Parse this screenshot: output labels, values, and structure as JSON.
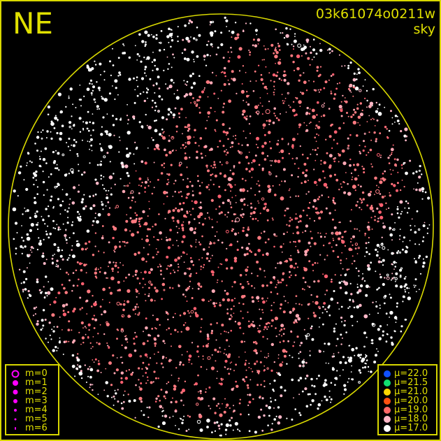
{
  "header": {
    "direction": "NE",
    "field_id": "03k61074o0211w",
    "view": "sky"
  },
  "colors": {
    "frame": "#d8d800",
    "horizon": "#d8d800",
    "magnitude_symbol": "#ff00ff"
  },
  "magnitude_legend": [
    {
      "label": "m=0",
      "style": "ring"
    },
    {
      "label": "m=1"
    },
    {
      "label": "m=2"
    },
    {
      "label": "m=3"
    },
    {
      "label": "m=4"
    },
    {
      "label": "m=5"
    },
    {
      "label": "m=6"
    }
  ],
  "brightness_legend": [
    {
      "label": "μ=22.0",
      "color": "#1050ff"
    },
    {
      "label": "μ=21.5",
      "color": "#10e070"
    },
    {
      "label": "μ=21.0",
      "color": "#ffd800"
    },
    {
      "label": "μ=20.0",
      "color": "#ff5010"
    },
    {
      "label": "μ=19.0",
      "color": "#ff6868"
    },
    {
      "label": "μ=18.0",
      "color": "#ffb8c8"
    },
    {
      "label": "μ=17.0",
      "color": "#ffffff"
    }
  ]
}
